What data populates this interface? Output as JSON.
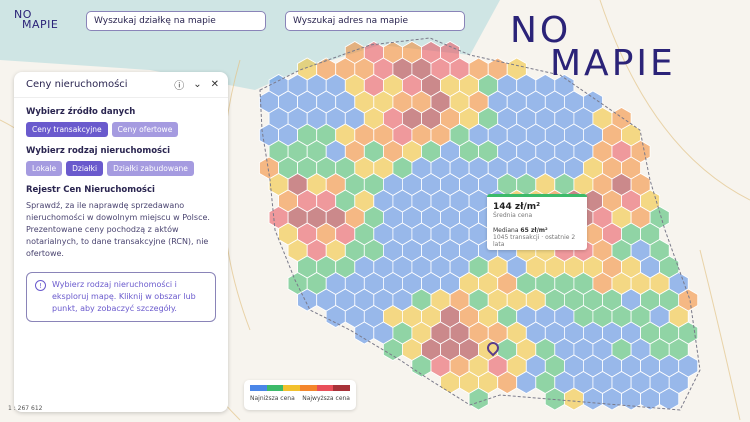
{
  "header": {
    "logo_line1": "NO",
    "logo_line2": "MAPIE",
    "search_plot_placeholder": "Wyszukaj działkę na mapie",
    "search_address_placeholder": "Wyszukaj adres na mapie"
  },
  "brand_logo": {
    "line1": "NO",
    "line2": "MAPIE",
    "colors": {
      "text": "#2b2378",
      "ring": "#8b6fe0",
      "dot": "#f39a2b"
    }
  },
  "panel": {
    "title": "Ceny nieruchomości",
    "icons": [
      "help-icon",
      "chevron-down-icon",
      "close-icon"
    ],
    "source_heading": "Wybierz źródło danych",
    "source_options": [
      {
        "label": "Ceny transakcyjne",
        "selected": true
      },
      {
        "label": "Ceny ofertowe",
        "selected": false
      }
    ],
    "type_heading": "Wybierz rodzaj nieruchomości",
    "type_options": [
      {
        "label": "Lokale",
        "selected": false
      },
      {
        "label": "Działki",
        "selected": true
      },
      {
        "label": "Działki zabudowane",
        "selected": false
      }
    ],
    "registry_heading": "Rejestr Cen Nieruchomości",
    "registry_text": "Sprawdź, za ile naprawdę sprzedawano nieruchomości w dowolnym miejscu w Polsce. Prezentowane ceny pochodzą z aktów notarialnych, to dane transakcyjne (RCN), nie ofertowe.",
    "info_text": "Wybierz rodzaj nieruchomości i eksploruj mapę. Kliknij w obszar lub punkt, aby zobaczyć szczegóły."
  },
  "tooltip": {
    "value": "144 zł/m²",
    "value_label": "Średnia cena",
    "median_label": "Mediana",
    "median_value": "65 zł/m²",
    "footer": "1045 transakcji · ostatnie 2 lata"
  },
  "legend": {
    "low_label": "Najniższa cena",
    "high_label": "Najwyższa cena",
    "colors": [
      "#4a86e8",
      "#3cba6a",
      "#f2c12e",
      "#f4862d",
      "#e94f5a",
      "#a8323a"
    ]
  },
  "scale_text": "1 : 267 612",
  "colors": {
    "accent": "#6a5acd",
    "accent_light": "#a59be0",
    "sea": "#cfe5e4",
    "land": "#f7f4ee"
  }
}
